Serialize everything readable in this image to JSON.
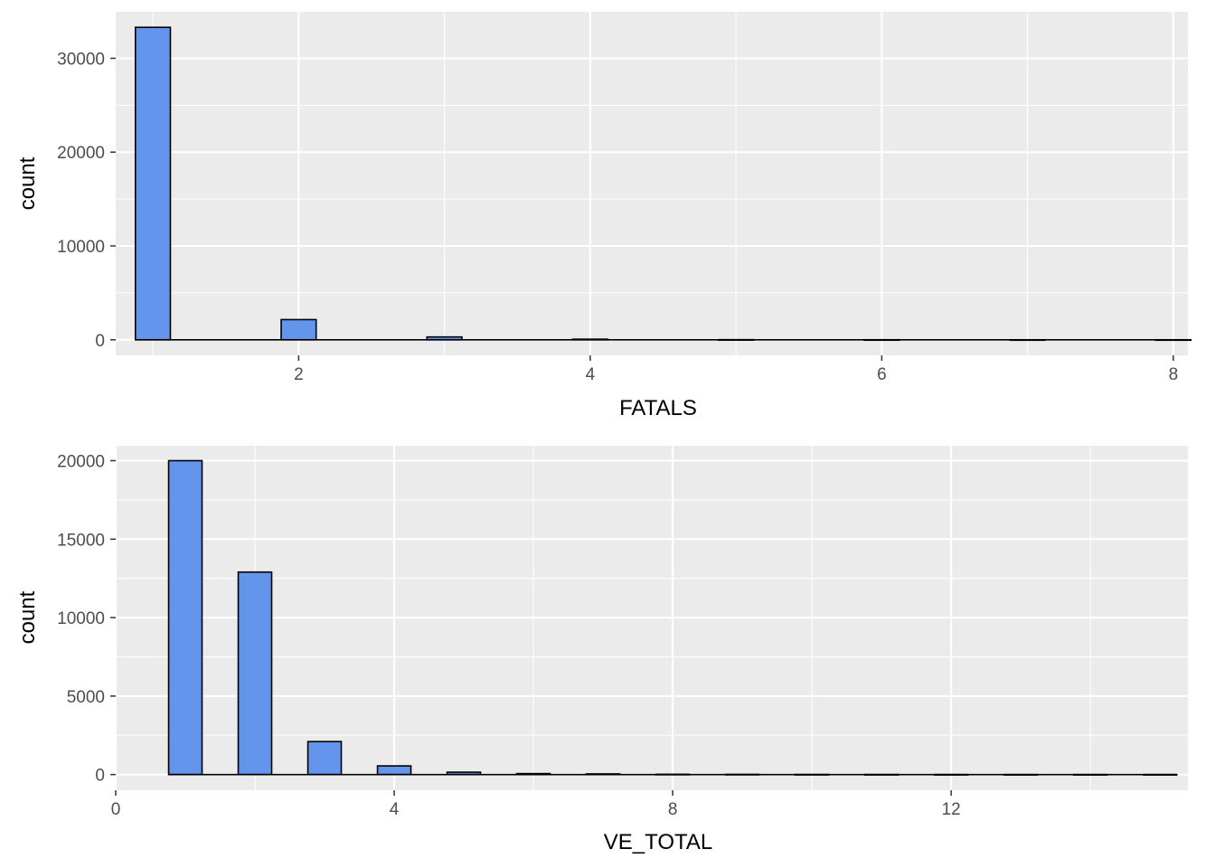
{
  "colors": {
    "panel_background": "#EBEBEB",
    "grid_major": "#FFFFFF",
    "bar_fill": "#6495ED",
    "bar_outline": "#000000",
    "tick_label": "#4D4D4D"
  },
  "chart_data": [
    {
      "type": "bar",
      "subtype": "histogram",
      "xlabel": "FATALS",
      "ylabel": "count",
      "xlim": [
        0.745,
        8.1
      ],
      "ylim": [
        -1660,
        34960
      ],
      "x_ticks": [
        2,
        4,
        6,
        8
      ],
      "x_tick_labels": [
        "2",
        "4",
        "6",
        "8"
      ],
      "y_ticks": [
        0,
        10000,
        20000,
        30000
      ],
      "y_tick_labels": [
        "0",
        "10000",
        "20000",
        "30000"
      ],
      "grid": true,
      "bin_width": 0.24,
      "x_range": [
        0.88,
        8.08
      ],
      "bins": [
        {
          "x": 1.0,
          "count": 33300
        },
        {
          "x": 2.0,
          "count": 2150
        },
        {
          "x": 3.0,
          "count": 300
        },
        {
          "x": 4.0,
          "count": 60
        },
        {
          "x": 5.0,
          "count": 10
        },
        {
          "x": 6.0,
          "count": 3
        },
        {
          "x": 7.0,
          "count": 1
        },
        {
          "x": 8.0,
          "count": 1
        }
      ]
    },
    {
      "type": "bar",
      "subtype": "histogram",
      "xlabel": "VE_TOTAL",
      "ylabel": "count",
      "xlim": [
        0,
        15.4
      ],
      "ylim": [
        -1000,
        20950
      ],
      "x_ticks": [
        0,
        4,
        8,
        12
      ],
      "x_tick_labels": [
        "0",
        "4",
        "8",
        "12"
      ],
      "y_ticks": [
        0,
        5000,
        10000,
        15000,
        20000
      ],
      "y_tick_labels": [
        "0",
        "5000",
        "10000",
        "15000",
        "20000"
      ],
      "grid": true,
      "bin_width": 0.48,
      "x_range": [
        0.76,
        15.24
      ],
      "bins": [
        {
          "x": 1.0,
          "count": 20000
        },
        {
          "x": 2.0,
          "count": 12900
        },
        {
          "x": 3.0,
          "count": 2100
        },
        {
          "x": 4.0,
          "count": 550
        },
        {
          "x": 5.0,
          "count": 150
        },
        {
          "x": 6.0,
          "count": 60
        },
        {
          "x": 7.0,
          "count": 40
        },
        {
          "x": 8.0,
          "count": 15
        },
        {
          "x": 9.0,
          "count": 10
        },
        {
          "x": 10.0,
          "count": 5
        },
        {
          "x": 11.0,
          "count": 3
        },
        {
          "x": 12.0,
          "count": 2
        },
        {
          "x": 13.0,
          "count": 1
        },
        {
          "x": 14.0,
          "count": 1
        },
        {
          "x": 15.0,
          "count": 1
        }
      ]
    }
  ]
}
